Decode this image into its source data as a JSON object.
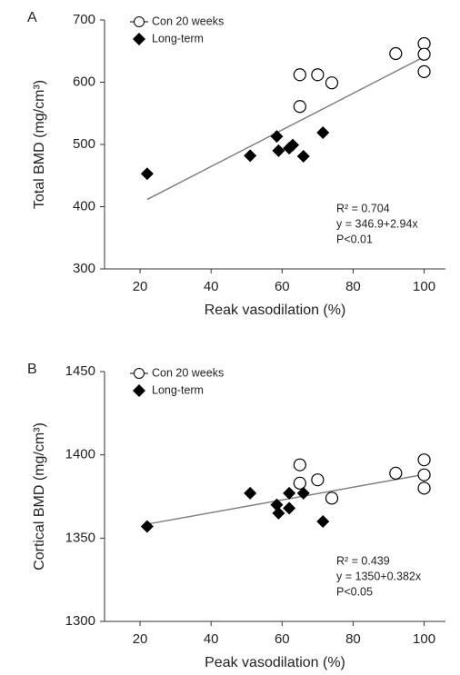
{
  "chart_data": [
    {
      "type": "scatter",
      "panel_label": "A",
      "xlabel": "Reak vasodilation (%)",
      "ylabel": "Total BMD (mg/cm³)",
      "xlim": [
        10,
        106
      ],
      "xticks": [
        20,
        40,
        60,
        80,
        100
      ],
      "ylim": [
        300,
        700
      ],
      "yticks": [
        300,
        400,
        500,
        600,
        700
      ],
      "legend": "upper left",
      "series": [
        {
          "name": "Con 20 weeks",
          "color": "#000000",
          "marker": "open-circle",
          "x": [
            65,
            70,
            74,
            65,
            92,
            100,
            100,
            100
          ],
          "values": [
            612,
            612,
            599,
            561,
            646,
            662,
            645,
            617
          ]
        },
        {
          "name": "Long-term",
          "color": "#000000",
          "marker": "diamond",
          "x": [
            22,
            51,
            58.5,
            59,
            62,
            63,
            66,
            71.5
          ],
          "values": [
            453,
            482,
            513,
            490,
            494,
            499,
            481,
            519
          ]
        }
      ],
      "trendline": {
        "color": "#808080",
        "x": [
          22,
          100
        ],
        "values": [
          411.6,
          640.9
        ]
      },
      "annotations": [
        "R² = 0.704",
        "y = 346.9+2.94x",
        "P<0.01"
      ]
    },
    {
      "type": "scatter",
      "panel_label": "B",
      "xlabel": "Peak vasodilation (%)",
      "ylabel": "Cortical BMD (mg/cm³)",
      "xlim": [
        10,
        106
      ],
      "xticks": [
        20,
        40,
        60,
        80,
        100
      ],
      "ylim": [
        1300,
        1450
      ],
      "yticks": [
        1300,
        1350,
        1400,
        1450
      ],
      "legend": "upper left",
      "series": [
        {
          "name": "Con 20 weeks",
          "color": "#000000",
          "marker": "open-circle",
          "x": [
            65,
            65,
            70,
            74,
            92,
            100,
            100,
            100
          ],
          "values": [
            1394,
            1383,
            1385,
            1374,
            1389,
            1397,
            1388,
            1380
          ]
        },
        {
          "name": "Long-term",
          "color": "#000000",
          "marker": "diamond",
          "x": [
            22,
            51,
            58.5,
            59,
            62,
            62,
            66,
            71.5
          ],
          "values": [
            1357,
            1377,
            1370,
            1365,
            1368,
            1377,
            1377,
            1360
          ]
        }
      ],
      "trendline": {
        "color": "#808080",
        "x": [
          22,
          100
        ],
        "values": [
          1358.4,
          1388.2
        ]
      },
      "annotations": [
        "R² = 0.439",
        "y = 1350+0.382x",
        "P<0.05"
      ]
    }
  ]
}
